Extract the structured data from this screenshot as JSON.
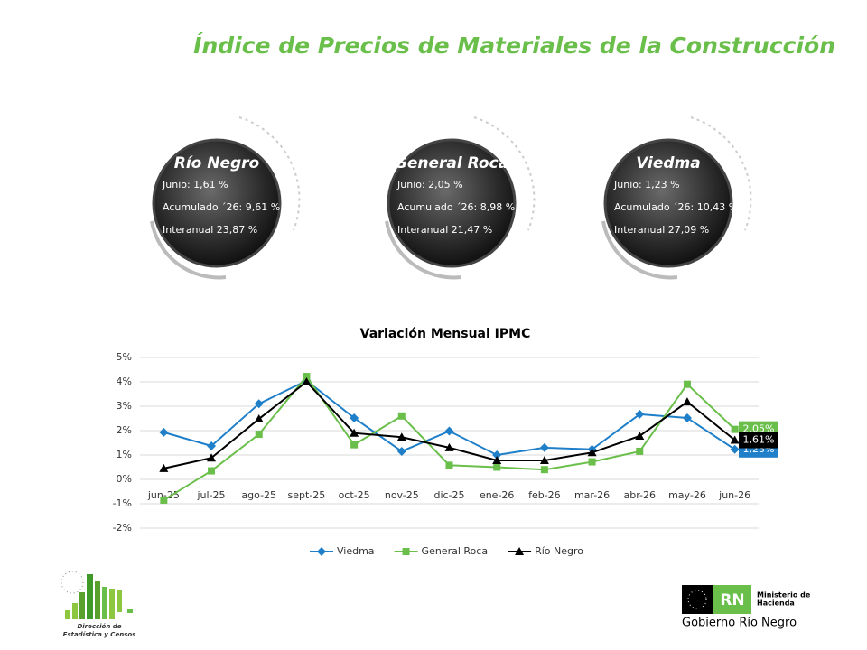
{
  "header": {
    "title": "Índice de Precios de Materiales de la Construcción"
  },
  "cards": [
    {
      "name": "Río Negro",
      "lines": [
        "Junio: 1,61 %",
        "Acumulado ´26: 9,61 %",
        "Interanual 23,87 %"
      ]
    },
    {
      "name": "General Roca",
      "lines": [
        "Junio: 2,05 %",
        "Acumulado ´26: 8,98 %",
        "Interanual 21,47 %"
      ]
    },
    {
      "name": "Viedma",
      "lines": [
        "Junio: 1,23 %",
        "Acumulado ´26: 10,43 %",
        "Interanual 27,09 %"
      ]
    }
  ],
  "chart_data": {
    "type": "line",
    "title": "Variación Mensual IPMC",
    "categories": [
      "jun-25",
      "jul-25",
      "ago-25",
      "sept-25",
      "oct-25",
      "nov-25",
      "dic-25",
      "ene-26",
      "feb-26",
      "mar-26",
      "abr-26",
      "may-26",
      "jun-26"
    ],
    "series": [
      {
        "name": "Viedma",
        "color": "#1f7fc9",
        "marker": "diamond",
        "values": [
          1.93,
          1.37,
          3.1,
          4.05,
          2.52,
          1.15,
          1.98,
          1.0,
          1.3,
          1.23,
          2.67,
          2.52,
          1.23
        ],
        "value_labels": [
          null,
          null,
          null,
          null,
          null,
          null,
          null,
          null,
          null,
          null,
          null,
          null,
          "1,23%"
        ]
      },
      {
        "name": "General Roca",
        "color": "#6abf4b",
        "marker": "square",
        "values": [
          -0.85,
          0.35,
          1.85,
          4.22,
          1.42,
          2.6,
          0.58,
          0.5,
          0.4,
          0.72,
          1.15,
          3.9,
          2.05
        ],
        "value_labels": [
          null,
          null,
          null,
          null,
          null,
          null,
          null,
          null,
          null,
          null,
          null,
          null,
          "2,05%"
        ]
      },
      {
        "name": "Río Negro",
        "color": "#000000",
        "marker": "triangle",
        "values": [
          0.45,
          0.88,
          2.48,
          4.0,
          1.9,
          1.73,
          1.3,
          0.78,
          0.78,
          1.1,
          1.78,
          3.18,
          1.61
        ],
        "value_labels": [
          null,
          null,
          null,
          null,
          null,
          null,
          null,
          null,
          null,
          null,
          null,
          null,
          "1,61%"
        ]
      }
    ],
    "ylim": [
      -2,
      5
    ],
    "yticks": [
      {
        "value": -2,
        "label": "-2%"
      },
      {
        "value": -1,
        "label": "-1%"
      },
      {
        "value": 0,
        "label": "0%"
      },
      {
        "value": 1,
        "label": "1%"
      },
      {
        "value": 2,
        "label": "2%"
      },
      {
        "value": 3,
        "label": "3%"
      },
      {
        "value": 4,
        "label": "4%"
      },
      {
        "value": 5,
        "label": "5%"
      }
    ],
    "grid": true,
    "legend": "bottom"
  },
  "footer": {
    "left_logo": [
      "Dirección de",
      "Estadística y Censos"
    ],
    "right_logo": {
      "badge": "RN",
      "ministry": [
        "Ministerio de",
        "Hacienda"
      ],
      "gov": "Gobierno Río Negro"
    }
  }
}
